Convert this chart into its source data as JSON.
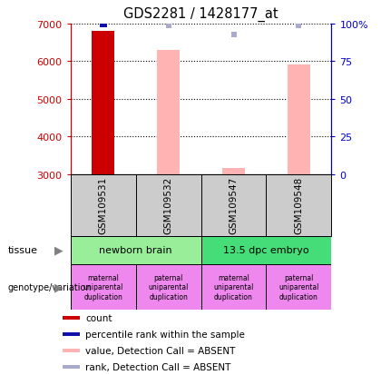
{
  "title": "GDS2281 / 1428177_at",
  "samples": [
    "GSM109531",
    "GSM109532",
    "GSM109547",
    "GSM109548"
  ],
  "ylim_left": [
    3000,
    7000
  ],
  "ylim_right": [
    0,
    100
  ],
  "yticks_left": [
    3000,
    4000,
    5000,
    6000,
    7000
  ],
  "yticks_right": [
    0,
    25,
    50,
    75,
    100
  ],
  "red_bar_sample": 0,
  "red_bar_value": 6800,
  "red_bar_color": "#cc0000",
  "pink_bar_values": [
    null,
    6300,
    3150,
    5900
  ],
  "pink_bar_color": "#ffb3b3",
  "blue_sq_values": [
    100,
    null,
    null,
    null
  ],
  "blue_sq_color": "#1111aa",
  "lightblue_sq_values": [
    null,
    99,
    93,
    99
  ],
  "lightblue_sq_color": "#aaaacc",
  "tissue_groups": [
    {
      "label": "newborn brain",
      "cols": [
        0,
        1
      ],
      "color": "#99ee99"
    },
    {
      "label": "13.5 dpc embryo",
      "cols": [
        2,
        3
      ],
      "color": "#44dd77"
    }
  ],
  "genotype_labels": [
    "maternal\nuniparental\nduplication",
    "paternal\nuniparental\nduplication",
    "maternal\nuniparental\nduplication",
    "paternal\nuniparental\nduplication"
  ],
  "genotype_color": "#ee88ee",
  "sample_box_color": "#cccccc",
  "left_color": "#cc0000",
  "right_color": "#0000cc",
  "background": "#ffffff",
  "legend_colors": [
    "#cc0000",
    "#1111aa",
    "#ffb3b3",
    "#aaaacc"
  ],
  "legend_labels": [
    "count",
    "percentile rank within the sample",
    "value, Detection Call = ABSENT",
    "rank, Detection Call = ABSENT"
  ]
}
